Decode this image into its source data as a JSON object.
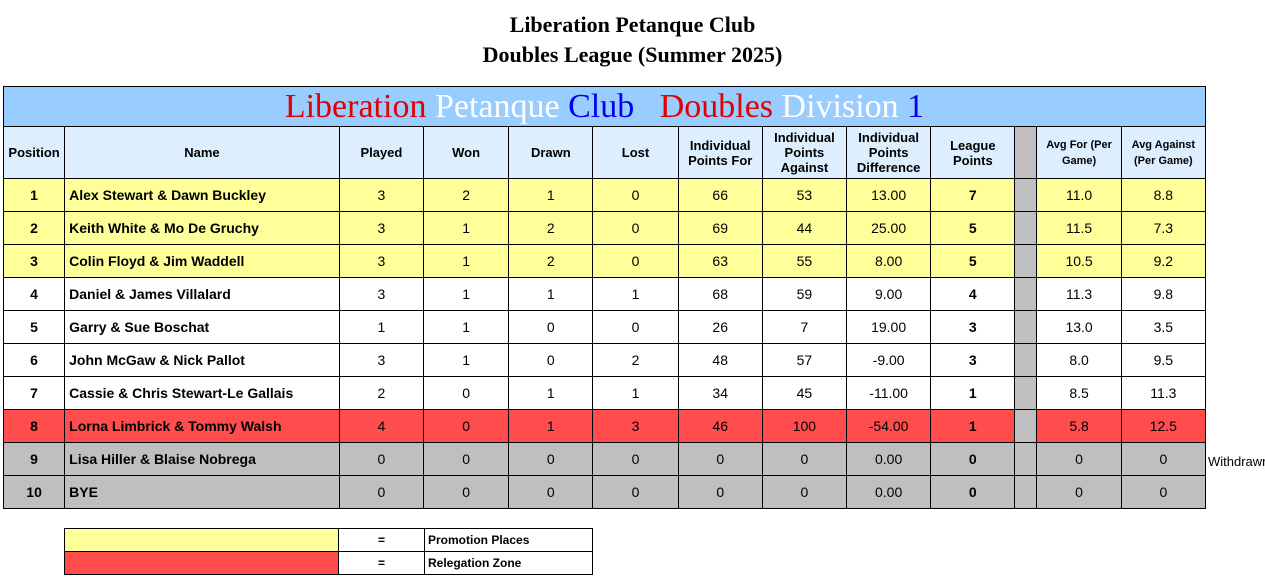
{
  "header": {
    "title_line1": "Liberation Petanque Club",
    "title_line2": "Doubles League (Summer 2025)"
  },
  "banner": {
    "word1": "Liberation",
    "word2": "Petanque",
    "word3": "Club",
    "word4": "Doubles",
    "word5": "Division",
    "word6": "1",
    "colors": {
      "red": "#e00000",
      "white": "#ffffff",
      "blue": "#0000ee",
      "background": "#99ccff"
    }
  },
  "columns": {
    "position": "Position",
    "name": "Name",
    "played": "Played",
    "won": "Won",
    "drawn": "Drawn",
    "lost": "Lost",
    "points_for": "Individual Points For",
    "points_against": "Individual Points Against",
    "points_diff": "Individual Points Difference",
    "league_points": "League Points",
    "avg_for": "Avg For (Per Game)",
    "avg_against": "Avg Against (Per Game)"
  },
  "rows": [
    {
      "pos": "1",
      "name": "Alex Stewart & Dawn Buckley",
      "played": "3",
      "won": "2",
      "drawn": "1",
      "lost": "0",
      "pf": "66",
      "pa": "53",
      "pd": "13.00",
      "lp": "7",
      "af": "11.0",
      "aa": "8.8",
      "zone": "promo"
    },
    {
      "pos": "2",
      "name": "Keith White & Mo De Gruchy",
      "played": "3",
      "won": "1",
      "drawn": "2",
      "lost": "0",
      "pf": "69",
      "pa": "44",
      "pd": "25.00",
      "lp": "5",
      "af": "11.5",
      "aa": "7.3",
      "zone": "promo"
    },
    {
      "pos": "3",
      "name": "Colin Floyd & Jim Waddell",
      "played": "3",
      "won": "1",
      "drawn": "2",
      "lost": "0",
      "pf": "63",
      "pa": "55",
      "pd": "8.00",
      "lp": "5",
      "af": "10.5",
      "aa": "9.2",
      "zone": "promo"
    },
    {
      "pos": "4",
      "name": "Daniel & James Villalard",
      "played": "3",
      "won": "1",
      "drawn": "1",
      "lost": "1",
      "pf": "68",
      "pa": "59",
      "pd": "9.00",
      "lp": "4",
      "af": "11.3",
      "aa": "9.8",
      "zone": "white"
    },
    {
      "pos": "5",
      "name": "Garry & Sue Boschat",
      "played": "1",
      "won": "1",
      "drawn": "0",
      "lost": "0",
      "pf": "26",
      "pa": "7",
      "pd": "19.00",
      "lp": "3",
      "af": "13.0",
      "aa": "3.5",
      "zone": "white"
    },
    {
      "pos": "6",
      "name": "John McGaw & Nick Pallot",
      "played": "3",
      "won": "1",
      "drawn": "0",
      "lost": "2",
      "pf": "48",
      "pa": "57",
      "pd": "-9.00",
      "lp": "3",
      "af": "8.0",
      "aa": "9.5",
      "zone": "white"
    },
    {
      "pos": "7",
      "name": "Cassie & Chris Stewart-Le Gallais",
      "played": "2",
      "won": "0",
      "drawn": "1",
      "lost": "1",
      "pf": "34",
      "pa": "45",
      "pd": "-11.00",
      "lp": "1",
      "af": "8.5",
      "aa": "11.3",
      "zone": "white"
    },
    {
      "pos": "8",
      "name": "Lorna Limbrick & Tommy Walsh",
      "played": "4",
      "won": "0",
      "drawn": "1",
      "lost": "3",
      "pf": "46",
      "pa": "100",
      "pd": "-54.00",
      "lp": "1",
      "af": "5.8",
      "aa": "12.5",
      "zone": "releg"
    },
    {
      "pos": "9",
      "name": "Lisa Hiller & Blaise Nobrega",
      "played": "0",
      "won": "0",
      "drawn": "0",
      "lost": "0",
      "pf": "0",
      "pa": "0",
      "pd": "0.00",
      "lp": "0",
      "af": "0",
      "aa": "0",
      "zone": "grey"
    },
    {
      "pos": "10",
      "name": "BYE",
      "played": "0",
      "won": "0",
      "drawn": "0",
      "lost": "0",
      "pf": "0",
      "pa": "0",
      "pd": "0.00",
      "lp": "0",
      "af": "0",
      "aa": "0",
      "zone": "grey"
    }
  ],
  "side_note": "Withdrawr",
  "legend": {
    "promotion": {
      "equals": "=",
      "label": "Promotion Places",
      "color": "#ffff99"
    },
    "relegation": {
      "equals": "=",
      "label": "Relegation  Zone",
      "color": "#ff4d4d"
    }
  }
}
